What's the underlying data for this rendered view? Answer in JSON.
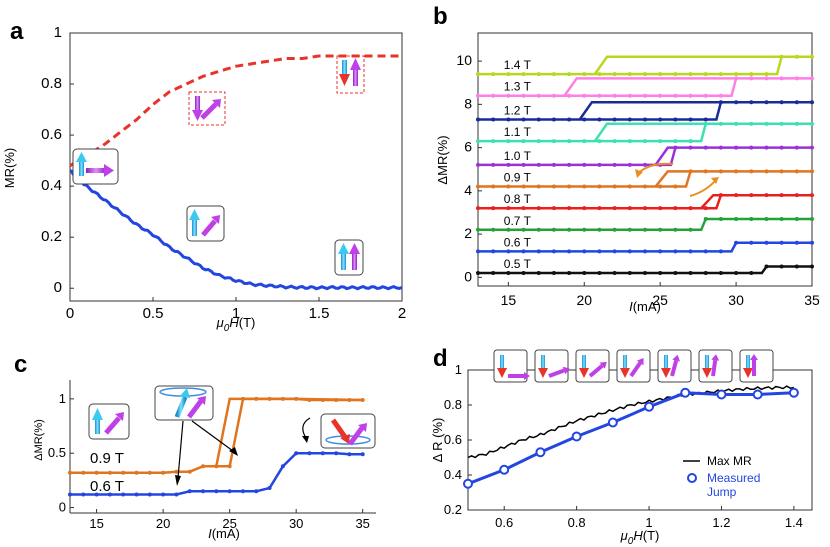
{
  "chart_data": [
    {
      "panel": "a",
      "type": "line",
      "xlabel": "μ0H(T)",
      "ylabel": "MR(%)",
      "xlim": [
        0,
        2
      ],
      "ylim": [
        -0.05,
        1.0
      ],
      "xticks": [
        "0",
        "0.5",
        "1",
        "1.5",
        "2"
      ],
      "yticks": [
        "0",
        "0.2",
        "0.4",
        "0.6",
        "0.8",
        "1"
      ],
      "xtick_values": [
        0,
        0.5,
        1,
        1.5,
        2
      ],
      "ytick_values": [
        0,
        0.2,
        0.4,
        0.6,
        0.8,
        1
      ],
      "series": [
        {
          "name": "max-MR-dashed",
          "color": "#e8332a",
          "style": "dashed",
          "x": [
            0,
            0.05,
            0.1,
            0.2,
            0.3,
            0.4,
            0.5,
            0.6,
            0.7,
            0.8,
            0.9,
            1.0,
            1.1,
            1.2,
            1.3,
            1.4,
            1.5,
            1.6,
            1.7,
            1.8,
            1.9,
            2.0
          ],
          "y": [
            0.48,
            0.5,
            0.52,
            0.56,
            0.61,
            0.66,
            0.72,
            0.77,
            0.8,
            0.83,
            0.85,
            0.87,
            0.88,
            0.89,
            0.9,
            0.9,
            0.91,
            0.91,
            0.91,
            0.91,
            0.91,
            0.91
          ]
        },
        {
          "name": "measured-MR",
          "color": "#2346e0",
          "style": "solid",
          "x": [
            0,
            0.05,
            0.1,
            0.2,
            0.3,
            0.4,
            0.5,
            0.6,
            0.7,
            0.8,
            0.9,
            1.0,
            1.1,
            1.2,
            1.3,
            1.4,
            1.5,
            1.6,
            1.7,
            1.8,
            1.9,
            2.0
          ],
          "y": [
            0.46,
            0.43,
            0.4,
            0.35,
            0.3,
            0.25,
            0.21,
            0.16,
            0.12,
            0.08,
            0.05,
            0.03,
            0.015,
            0.01,
            0.005,
            0.003,
            0.002,
            0.003,
            0.002,
            0.003,
            0.002,
            0.003
          ]
        }
      ]
    },
    {
      "panel": "b",
      "type": "line",
      "xlabel": "I(mA)",
      "ylabel": "ΔMR(%)",
      "xlim": [
        13,
        35
      ],
      "ylim": [
        -0.4,
        11.3
      ],
      "xticks": [
        "15",
        "20",
        "25",
        "30",
        "35"
      ],
      "yticks": [
        "0",
        "2",
        "4",
        "6",
        "8",
        "10"
      ],
      "xtick_values": [
        15,
        20,
        25,
        30,
        35
      ],
      "ytick_values": [
        0,
        2,
        4,
        6,
        8,
        10
      ],
      "series": [
        {
          "name": "0.5 T",
          "color": "#111111",
          "low": 0.2,
          "high": 0.5,
          "up": 32,
          "down": 32
        },
        {
          "name": "0.6 T",
          "color": "#2346e0",
          "low": 1.2,
          "high": 1.6,
          "up": 30,
          "down": 30
        },
        {
          "name": "0.7 T",
          "color": "#22a33a",
          "low": 2.2,
          "high": 2.7,
          "up": 28,
          "down": 28
        },
        {
          "name": "0.8 T",
          "color": "#e81f1f",
          "low": 3.2,
          "high": 3.8,
          "up": 29,
          "down": 28
        },
        {
          "name": "0.9 T",
          "color": "#e07520",
          "low": 4.2,
          "high": 4.9,
          "up": 27,
          "down": 25
        },
        {
          "name": "1.0 T",
          "color": "#9b30d9",
          "low": 5.2,
          "high": 6.0,
          "up": 26,
          "down": 25
        },
        {
          "name": "1.1 T",
          "color": "#3de0b0",
          "low": 6.3,
          "high": 7.1,
          "up": 28,
          "down": 21
        },
        {
          "name": "1.2 T",
          "color": "#1a2a9a",
          "low": 7.3,
          "high": 8.1,
          "up": 29,
          "down": 20
        },
        {
          "name": "1.3 T",
          "color": "#ff7ee8",
          "low": 8.4,
          "high": 9.2,
          "up": 30,
          "down": 19
        },
        {
          "name": "1.4 T",
          "color": "#b8d820",
          "low": 9.4,
          "high": 10.2,
          "up": 33,
          "down": 21
        }
      ]
    },
    {
      "panel": "c",
      "type": "line",
      "xlabel": "I(mA)",
      "ylabel": "ΔMR(%)",
      "xlim": [
        13,
        36
      ],
      "ylim": [
        -0.05,
        1.1
      ],
      "xticks": [
        "15",
        "20",
        "25",
        "30",
        "35"
      ],
      "yticks": [
        "0",
        "0.5",
        "1"
      ],
      "xtick_values": [
        15,
        20,
        25,
        30,
        35
      ],
      "ytick_values": [
        0,
        0.5,
        1
      ],
      "series": [
        {
          "name": "0.9 T",
          "color": "#e07520",
          "x": [
            13,
            14,
            15,
            16,
            17,
            18,
            19,
            20,
            21,
            22,
            23,
            24,
            25,
            26,
            27,
            28,
            29,
            30,
            31,
            32,
            33,
            34,
            35
          ],
          "y": [
            0.32,
            0.32,
            0.32,
            0.32,
            0.32,
            0.32,
            0.32,
            0.32,
            0.33,
            0.33,
            0.38,
            0.38,
            0.38,
            1.0,
            1.0,
            1.0,
            1.0,
            1.0,
            0.99,
            0.99,
            0.99,
            0.99,
            0.99
          ],
          "return_x": [
            35,
            30,
            28,
            27,
            26,
            25,
            24,
            23
          ],
          "return_y": [
            0.99,
            1.0,
            1.0,
            1.0,
            1.0,
            1.0,
            0.38,
            0.38
          ]
        },
        {
          "name": "0.6 T",
          "color": "#2346e0",
          "x": [
            13,
            14,
            15,
            16,
            17,
            18,
            19,
            20,
            21,
            22,
            23,
            24,
            25,
            26,
            27,
            28,
            29,
            30,
            31,
            32,
            33,
            34,
            35
          ],
          "y": [
            0.12,
            0.12,
            0.12,
            0.12,
            0.12,
            0.12,
            0.12,
            0.12,
            0.12,
            0.15,
            0.15,
            0.15,
            0.15,
            0.15,
            0.15,
            0.18,
            0.38,
            0.5,
            0.5,
            0.5,
            0.5,
            0.49,
            0.49
          ]
        }
      ]
    },
    {
      "panel": "d",
      "type": "line",
      "xlabel": "μ0H(T)",
      "ylabel": "Δ R (%)",
      "xlim": [
        0.5,
        1.45
      ],
      "ylim": [
        0.2,
        1.0
      ],
      "xticks": [
        "0.6",
        "0.8",
        "1",
        "1.2",
        "1.4"
      ],
      "yticks": [
        "0.2",
        "0.4",
        "0.6",
        "0.8",
        "1"
      ],
      "xtick_values": [
        0.6,
        0.8,
        1.0,
        1.2,
        1.4
      ],
      "ytick_values": [
        0.2,
        0.4,
        0.6,
        0.8,
        1.0
      ],
      "series": [
        {
          "name": "Max MR",
          "color": "#000000",
          "x": [
            0.5,
            0.55,
            0.6,
            0.65,
            0.7,
            0.75,
            0.8,
            0.85,
            0.9,
            0.95,
            1.0,
            1.05,
            1.1,
            1.15,
            1.2,
            1.25,
            1.3,
            1.35,
            1.4
          ],
          "y": [
            0.5,
            0.52,
            0.56,
            0.6,
            0.63,
            0.67,
            0.71,
            0.74,
            0.77,
            0.8,
            0.82,
            0.84,
            0.86,
            0.87,
            0.88,
            0.89,
            0.895,
            0.9,
            0.9
          ]
        },
        {
          "name": "Measured Jump",
          "color": "#2346e0",
          "x": [
            0.5,
            0.6,
            0.7,
            0.8,
            0.9,
            1.0,
            1.1,
            1.2,
            1.3,
            1.4
          ],
          "y": [
            0.35,
            0.43,
            0.53,
            0.62,
            0.7,
            0.79,
            0.87,
            0.86,
            0.86,
            0.87
          ]
        }
      ]
    }
  ],
  "labels": {
    "panel_a": "a",
    "panel_b": "b",
    "panel_c": "c",
    "panel_d": "d",
    "a_xlabel_mu": "μ",
    "a_xlabel_sub": "0",
    "a_xlabel_h": "H",
    "a_xlabel_unit": "(T)",
    "a_ylabel": "MR(%)",
    "b_ylabel": "ΔMR(%)",
    "b_xlabel_i": "I",
    "b_xlabel_unit": "(mA)",
    "c_ylabel": "ΔMR(%)",
    "c_xlabel_i": "I",
    "c_xlabel_unit": "(mA)",
    "c_label_09": "0.9 T",
    "c_label_06": "0.6 T",
    "d_ylabel": "Δ R (%)",
    "d_xlabel_mu": "μ",
    "d_xlabel_sub": "0",
    "d_xlabel_h": "H",
    "d_xlabel_unit": "(T)",
    "legend_max": "Max MR",
    "legend_measured_1": "Measured",
    "legend_measured_2": "Jump"
  },
  "colors": {
    "cyan_arrow": "#3cc8f0",
    "magenta_arrow": "#c040e8",
    "red_box": "#e8332a"
  }
}
